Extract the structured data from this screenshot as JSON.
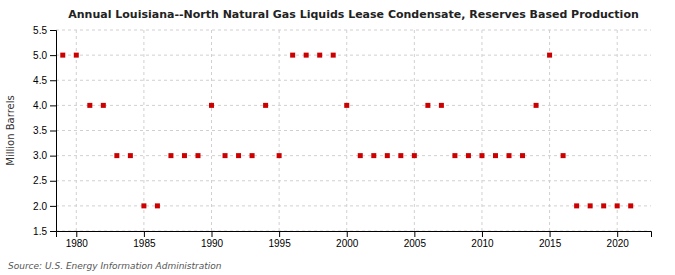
{
  "chart_data": {
    "type": "scatter",
    "title": "Annual Louisiana--North Natural Gas Liquids Lease Condensate, Reserves Based Production",
    "ylabel": "Million Barrels",
    "source": "Source: U.S. Energy Information Administration",
    "color": "#cc0000",
    "marker": "square",
    "grid": true,
    "xlim": [
      1978.5,
      2022.5
    ],
    "xticks": [
      1980,
      1985,
      1990,
      1995,
      2000,
      2005,
      2010,
      2015,
      2020
    ],
    "ylim": [
      1.5,
      5.5
    ],
    "yticks": [
      1.5,
      {
        "value": 2.0,
        "label": "2.0"
      },
      2.5,
      {
        "value": 3.0,
        "label": "3.0"
      },
      3.5,
      {
        "value": 4.0,
        "label": "4.0"
      },
      4.5,
      {
        "value": 5.0,
        "label": "5.0"
      },
      5.5
    ],
    "x": [
      1979,
      1980,
      1981,
      1982,
      1983,
      1984,
      1985,
      1986,
      1987,
      1988,
      1989,
      1990,
      1991,
      1992,
      1993,
      1994,
      1995,
      1996,
      1997,
      1998,
      1999,
      2000,
      2001,
      2002,
      2003,
      2004,
      2005,
      2006,
      2007,
      2008,
      2009,
      2010,
      2011,
      2012,
      2013,
      2014,
      2015,
      2016,
      2017,
      2018,
      2019,
      2020,
      2021
    ],
    "values": [
      5.0,
      5.0,
      4.0,
      4.0,
      3.0,
      3.0,
      2.0,
      2.0,
      3.0,
      3.0,
      3.0,
      4.0,
      3.0,
      3.0,
      3.0,
      4.0,
      3.0,
      5.0,
      5.0,
      5.0,
      5.0,
      4.0,
      3.0,
      3.0,
      3.0,
      3.0,
      3.0,
      4.0,
      4.0,
      3.0,
      3.0,
      3.0,
      3.0,
      3.0,
      3.0,
      4.0,
      5.0,
      3.0,
      2.0,
      2.0,
      2.0,
      2.0,
      2.0
    ]
  }
}
